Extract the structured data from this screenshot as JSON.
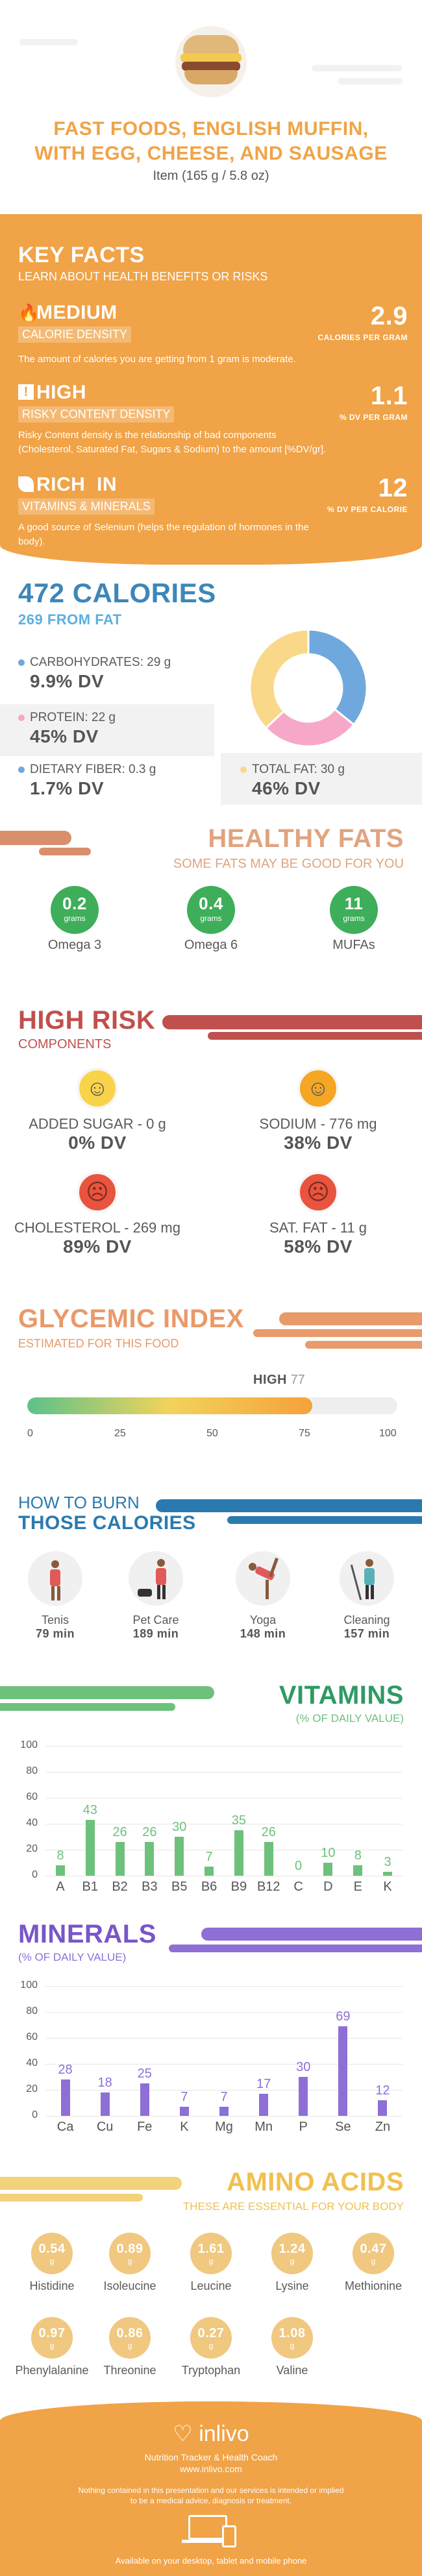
{
  "header": {
    "title_line1": "FAST FOODS, ENGLISH MUFFIN,",
    "title_line2": "WITH EGG, CHEESE, AND SAUSAGE",
    "subtitle": "Item (165 g / 5.8 oz)"
  },
  "key_facts": {
    "title": "KEY FACTS",
    "subtitle": "LEARN ABOUT HEALTH BENEFITS OR RISKS",
    "items": [
      {
        "level": "MEDIUM",
        "name": "CALORIE DENSITY",
        "value": "2.9",
        "unit": "CALORIES PER GRAM",
        "desc": "The amount of calories you are getting from 1 gram is moderate."
      },
      {
        "level": "HIGH",
        "name": "RISKY CONTENT DENSITY",
        "value": "1.1",
        "unit": "% DV PER GRAM",
        "desc_line1": "Risky Content density is the relationship of bad components",
        "desc_line2": "(Cholesterol, Saturated Fat, Sugars & Sodium) to the amount [%DV/gr]."
      },
      {
        "level": "RICH  IN",
        "name": "VITAMINS & MINERALS",
        "value": "12",
        "unit": "% DV PER CALORIE",
        "desc_line1": "A good source of Selenium (helps the regulation of hormones in the",
        "desc_line2": "body)."
      }
    ]
  },
  "calories": {
    "title": "472 CALORIES",
    "from_fat": "269 FROM FAT",
    "carbs_label": "CARBOHYDRATES: 29 g",
    "carbs_dv": "9.9% DV",
    "protein_label": "PROTEIN: 22 g",
    "protein_dv": "45% DV",
    "fiber_label": "DIETARY FIBER: 0.3 g",
    "fiber_dv": "1.7% DV",
    "fat_label": "TOTAL FAT: 30 g",
    "fat_dv": "46% DV",
    "donut": [
      {
        "name": "carbs",
        "value": 29,
        "color": "#6fa8dc"
      },
      {
        "name": "protein",
        "value": 22,
        "color": "#f7a8c8"
      },
      {
        "name": "fat",
        "value": 30,
        "color": "#f9d88a"
      }
    ]
  },
  "healthy_fats": {
    "title": "HEALTHY FATS",
    "subtitle": "SOME FATS MAY BE GOOD FOR YOU",
    "items": [
      {
        "value": "0.2",
        "unit": "grams",
        "name": "Omega 3"
      },
      {
        "value": "0.4",
        "unit": "grams",
        "name": "Omega 6"
      },
      {
        "value": "11",
        "unit": "grams",
        "name": "MUFAs"
      }
    ]
  },
  "high_risk": {
    "title": "HIGH RISK",
    "subtitle": "COMPONENTS",
    "items": [
      {
        "label": "ADDED SUGAR - 0 g",
        "dv": "0% DV",
        "face": "happy"
      },
      {
        "label": "SODIUM - 776 mg",
        "dv": "38% DV",
        "face": "neutral"
      },
      {
        "label": "CHOLESTEROL - 269 mg",
        "dv": "89% DV",
        "face": "sad"
      },
      {
        "label": "SAT. FAT - 11 g",
        "dv": "58% DV",
        "face": "sad"
      }
    ]
  },
  "glycemic": {
    "title": "GLYCEMIC INDEX",
    "subtitle": "ESTIMATED FOR THIS FOOD",
    "level": "HIGH",
    "value": "77",
    "value_num": 77,
    "ticks": [
      "0",
      "25",
      "50",
      "75",
      "100"
    ]
  },
  "burn": {
    "title_line1": "HOW TO BURN",
    "title_line2": "THOSE CALORIES",
    "items": [
      {
        "name": "Tenis",
        "time": "79 min"
      },
      {
        "name": "Pet Care",
        "time": "189 min"
      },
      {
        "name": "Yoga",
        "time": "148 min"
      },
      {
        "name": "Cleaning",
        "time": "157 min"
      }
    ]
  },
  "vitamins": {
    "title": "VITAMINS",
    "subtitle": "(% OF DAILY VALUE)",
    "color": "#6dc17a"
  },
  "minerals": {
    "title": "MINERALS",
    "subtitle": "(% OF DAILY VALUE)",
    "color": "#8e6fd6"
  },
  "chart_data": [
    {
      "type": "bar",
      "title": "VITAMINS",
      "categories": [
        "A",
        "B1",
        "B2",
        "B3",
        "B5",
        "B6",
        "B9",
        "B12",
        "C",
        "D",
        "E",
        "K"
      ],
      "values": [
        8,
        43,
        26,
        26,
        30,
        7,
        35,
        26,
        0,
        10,
        8,
        3
      ],
      "ylim": [
        0,
        100
      ],
      "yticks": [
        "0",
        "20",
        "40",
        "60",
        "80",
        "100"
      ]
    },
    {
      "type": "bar",
      "title": "MINERALS",
      "categories": [
        "Ca",
        "Cu",
        "Fe",
        "K",
        "Mg",
        "Mn",
        "P",
        "Se",
        "Zn"
      ],
      "values": [
        28,
        18,
        25,
        7,
        7,
        17,
        30,
        69,
        12
      ],
      "ylim": [
        0,
        100
      ],
      "yticks": [
        "0",
        "20",
        "40",
        "60",
        "80",
        "100"
      ]
    }
  ],
  "amino": {
    "title": "AMINO ACIDS",
    "subtitle": "THESE ARE ESSENTIAL FOR YOUR BODY",
    "items": [
      {
        "value": "0.54",
        "unit": "g",
        "name": "Histidine"
      },
      {
        "value": "0.89",
        "unit": "g",
        "name": "Isoleucine"
      },
      {
        "value": "1.61",
        "unit": "g",
        "name": "Leucine"
      },
      {
        "value": "1.24",
        "unit": "g",
        "name": "Lysine"
      },
      {
        "value": "0.47",
        "unit": "g",
        "name": "Methionine"
      },
      {
        "value": "0.97",
        "unit": "g",
        "name": "Phenylalanine"
      },
      {
        "value": "0.86",
        "unit": "g",
        "name": "Threonine"
      },
      {
        "value": "0.27",
        "unit": "g",
        "name": "Tryptophan"
      },
      {
        "value": "1.08",
        "unit": "g",
        "name": "Valine"
      }
    ]
  },
  "footer": {
    "brand": "inlivo",
    "tagline": "Nutrition Tracker & Health Coach",
    "url": "www.inlivo.com",
    "disclaimer_line1": "Nothing contained in this presentation and our services is intended or implied",
    "disclaimer_line2": "to be a medical advice, diagnosis or treatment.",
    "available": "Available on your desktop, tablet and mobile phone"
  }
}
